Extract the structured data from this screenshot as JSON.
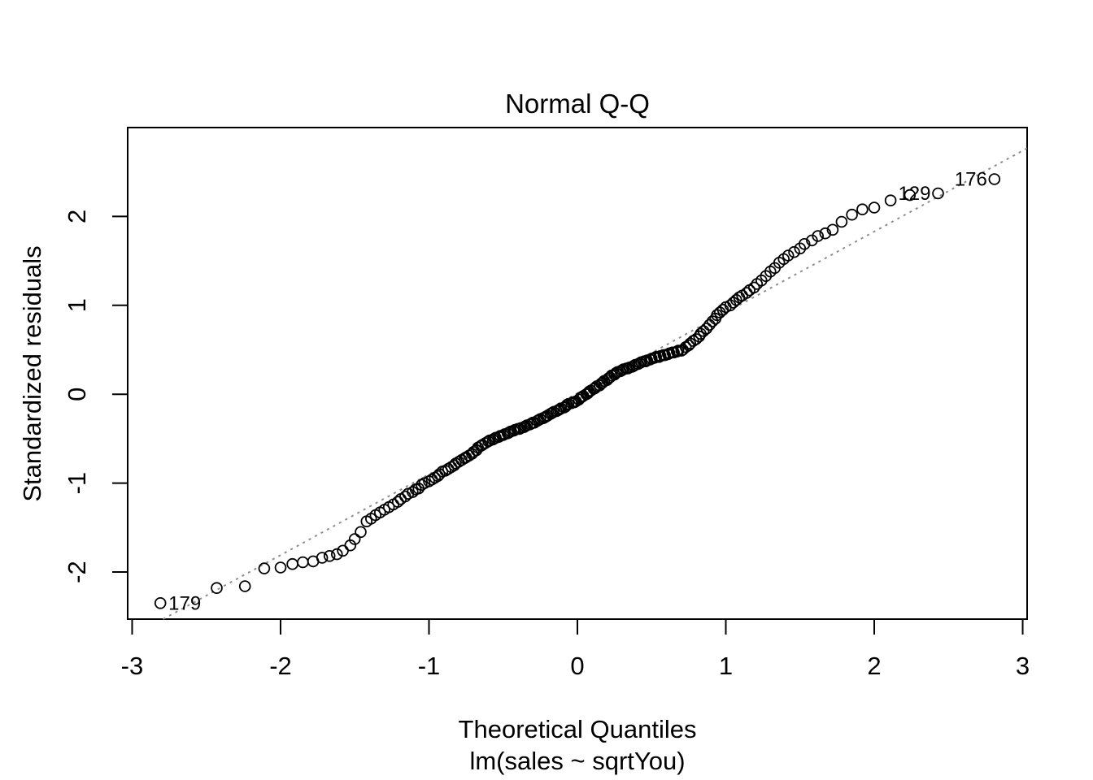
{
  "chart_data": {
    "type": "scatter",
    "subtype": "qq-plot",
    "title": "Normal Q-Q",
    "xlabel": "Theoretical Quantiles",
    "subtitle": "lm(sales ~ sqrtYou)",
    "ylabel": "Standardized residuals",
    "grid": false,
    "xlim": [
      -3.03,
      3.03
    ],
    "ylim": [
      -2.53,
      3.0
    ],
    "x_ticks": [
      -3,
      -2,
      -1,
      0,
      1,
      2,
      3
    ],
    "y_ticks": [
      -2,
      -1,
      0,
      1,
      2
    ],
    "point_color": "#000000",
    "reference_line": {
      "style": "dotted",
      "color": "#8c8c8c",
      "slope": 0.91,
      "intercept": 0.01
    },
    "labeled_points": [
      {
        "label": "179",
        "x": -2.81,
        "y": -2.35,
        "side": "right"
      },
      {
        "label": "129",
        "x": 2.43,
        "y": 2.26,
        "side": "left"
      },
      {
        "label": "176",
        "x": 2.81,
        "y": 2.42,
        "side": "left"
      }
    ],
    "points": [
      [
        -2.81,
        -2.35
      ],
      [
        -2.43,
        -2.18
      ],
      [
        -2.24,
        -2.16
      ],
      [
        -2.11,
        -1.96
      ],
      [
        -2.0,
        -1.95
      ],
      [
        -1.92,
        -1.91
      ],
      [
        -1.85,
        -1.89
      ],
      [
        -1.78,
        -1.88
      ],
      [
        -1.72,
        -1.84
      ],
      [
        -1.67,
        -1.82
      ],
      [
        -1.62,
        -1.8
      ],
      [
        -1.58,
        -1.76
      ],
      [
        -1.53,
        -1.7
      ],
      [
        -1.5,
        -1.63
      ],
      [
        -1.46,
        -1.55
      ],
      [
        -1.42,
        -1.43
      ],
      [
        -1.39,
        -1.4
      ],
      [
        -1.36,
        -1.36
      ],
      [
        -1.33,
        -1.33
      ],
      [
        -1.3,
        -1.3
      ],
      [
        -1.27,
        -1.27
      ],
      [
        -1.24,
        -1.24
      ],
      [
        -1.21,
        -1.21
      ],
      [
        -1.19,
        -1.18
      ],
      [
        -1.16,
        -1.15
      ],
      [
        -1.14,
        -1.12
      ],
      [
        -1.11,
        -1.1
      ],
      [
        -1.09,
        -1.07
      ],
      [
        -1.07,
        -1.06
      ],
      [
        -1.05,
        -1.02
      ],
      [
        -1.03,
        -1.0
      ],
      [
        -1.0,
        -0.98
      ],
      [
        -0.98,
        -0.96
      ],
      [
        -0.96,
        -0.94
      ],
      [
        -0.94,
        -0.92
      ],
      [
        -0.93,
        -0.9
      ],
      [
        -0.91,
        -0.87
      ],
      [
        -0.89,
        -0.86
      ],
      [
        -0.87,
        -0.84
      ],
      [
        -0.85,
        -0.82
      ],
      [
        -0.83,
        -0.8
      ],
      [
        -0.82,
        -0.78
      ],
      [
        -0.8,
        -0.76
      ],
      [
        -0.78,
        -0.74
      ],
      [
        -0.76,
        -0.72
      ],
      [
        -0.75,
        -0.71
      ],
      [
        -0.73,
        -0.69
      ],
      [
        -0.71,
        -0.67
      ],
      [
        -0.7,
        -0.65
      ],
      [
        -0.68,
        -0.63
      ],
      [
        -0.67,
        -0.6
      ],
      [
        -0.65,
        -0.58
      ],
      [
        -0.64,
        -0.57
      ],
      [
        -0.62,
        -0.55
      ],
      [
        -0.6,
        -0.53
      ],
      [
        -0.59,
        -0.52
      ],
      [
        -0.57,
        -0.51
      ],
      [
        -0.56,
        -0.5
      ],
      [
        -0.55,
        -0.49
      ],
      [
        -0.53,
        -0.48
      ],
      [
        -0.52,
        -0.47
      ],
      [
        -0.5,
        -0.46
      ],
      [
        -0.49,
        -0.45
      ],
      [
        -0.47,
        -0.44
      ],
      [
        -0.46,
        -0.43
      ],
      [
        -0.45,
        -0.42
      ],
      [
        -0.43,
        -0.41
      ],
      [
        -0.42,
        -0.4
      ],
      [
        -0.4,
        -0.39
      ],
      [
        -0.39,
        -0.39
      ],
      [
        -0.38,
        -0.38
      ],
      [
        -0.36,
        -0.37
      ],
      [
        -0.35,
        -0.36
      ],
      [
        -0.34,
        -0.35
      ],
      [
        -0.32,
        -0.34
      ],
      [
        -0.31,
        -0.33
      ],
      [
        -0.3,
        -0.32
      ],
      [
        -0.29,
        -0.32
      ],
      [
        -0.27,
        -0.3
      ],
      [
        -0.26,
        -0.29
      ],
      [
        -0.25,
        -0.28
      ],
      [
        -0.23,
        -0.27
      ],
      [
        -0.22,
        -0.26
      ],
      [
        -0.21,
        -0.25
      ],
      [
        -0.2,
        -0.24
      ],
      [
        -0.18,
        -0.22
      ],
      [
        -0.17,
        -0.21
      ],
      [
        -0.16,
        -0.2
      ],
      [
        -0.14,
        -0.19
      ],
      [
        -0.13,
        -0.18
      ],
      [
        -0.12,
        -0.17
      ],
      [
        -0.11,
        -0.16
      ],
      [
        -0.09,
        -0.15
      ],
      [
        -0.08,
        -0.14
      ],
      [
        -0.07,
        -0.12
      ],
      [
        -0.06,
        -0.11
      ],
      [
        -0.04,
        -0.1
      ],
      [
        -0.03,
        -0.09
      ],
      [
        -0.02,
        -0.09
      ],
      [
        -0.01,
        -0.08
      ],
      [
        0.01,
        -0.06
      ],
      [
        0.02,
        -0.04
      ],
      [
        0.03,
        -0.03
      ],
      [
        0.04,
        -0.02
      ],
      [
        0.06,
        0.0
      ],
      [
        0.07,
        0.01
      ],
      [
        0.08,
        0.03
      ],
      [
        0.09,
        0.04
      ],
      [
        0.11,
        0.06
      ],
      [
        0.12,
        0.07
      ],
      [
        0.13,
        0.09
      ],
      [
        0.15,
        0.1
      ],
      [
        0.16,
        0.12
      ],
      [
        0.17,
        0.13
      ],
      [
        0.18,
        0.15
      ],
      [
        0.2,
        0.16
      ],
      [
        0.21,
        0.18
      ],
      [
        0.22,
        0.19
      ],
      [
        0.23,
        0.21
      ],
      [
        0.25,
        0.22
      ],
      [
        0.26,
        0.24
      ],
      [
        0.27,
        0.25
      ],
      [
        0.29,
        0.26
      ],
      [
        0.3,
        0.27
      ],
      [
        0.31,
        0.28
      ],
      [
        0.33,
        0.29
      ],
      [
        0.34,
        0.29
      ],
      [
        0.35,
        0.3
      ],
      [
        0.37,
        0.31
      ],
      [
        0.38,
        0.32
      ],
      [
        0.39,
        0.33
      ],
      [
        0.41,
        0.34
      ],
      [
        0.42,
        0.35
      ],
      [
        0.43,
        0.36
      ],
      [
        0.45,
        0.37
      ],
      [
        0.46,
        0.37
      ],
      [
        0.47,
        0.38
      ],
      [
        0.49,
        0.39
      ],
      [
        0.5,
        0.4
      ],
      [
        0.52,
        0.41
      ],
      [
        0.53,
        0.42
      ],
      [
        0.55,
        0.42
      ],
      [
        0.56,
        0.43
      ],
      [
        0.58,
        0.44
      ],
      [
        0.59,
        0.44
      ],
      [
        0.61,
        0.45
      ],
      [
        0.62,
        0.46
      ],
      [
        0.64,
        0.47
      ],
      [
        0.65,
        0.47
      ],
      [
        0.67,
        0.48
      ],
      [
        0.68,
        0.49
      ],
      [
        0.7,
        0.49
      ],
      [
        0.71,
        0.5
      ],
      [
        0.73,
        0.53
      ],
      [
        0.75,
        0.55
      ],
      [
        0.76,
        0.57
      ],
      [
        0.78,
        0.6
      ],
      [
        0.8,
        0.62
      ],
      [
        0.82,
        0.65
      ],
      [
        0.83,
        0.68
      ],
      [
        0.85,
        0.71
      ],
      [
        0.87,
        0.74
      ],
      [
        0.89,
        0.78
      ],
      [
        0.91,
        0.82
      ],
      [
        0.93,
        0.85
      ],
      [
        0.94,
        0.89
      ],
      [
        0.96,
        0.92
      ],
      [
        0.98,
        0.95
      ],
      [
        1.0,
        0.98
      ],
      [
        1.03,
        1.0
      ],
      [
        1.05,
        1.03
      ],
      [
        1.07,
        1.06
      ],
      [
        1.09,
        1.09
      ],
      [
        1.11,
        1.11
      ],
      [
        1.14,
        1.14
      ],
      [
        1.16,
        1.17
      ],
      [
        1.19,
        1.2
      ],
      [
        1.21,
        1.24
      ],
      [
        1.24,
        1.28
      ],
      [
        1.27,
        1.33
      ],
      [
        1.3,
        1.38
      ],
      [
        1.33,
        1.42
      ],
      [
        1.36,
        1.48
      ],
      [
        1.39,
        1.52
      ],
      [
        1.42,
        1.56
      ],
      [
        1.46,
        1.6
      ],
      [
        1.5,
        1.64
      ],
      [
        1.53,
        1.69
      ],
      [
        1.58,
        1.73
      ],
      [
        1.62,
        1.78
      ],
      [
        1.67,
        1.81
      ],
      [
        1.72,
        1.85
      ],
      [
        1.78,
        1.94
      ],
      [
        1.85,
        2.02
      ],
      [
        1.92,
        2.08
      ],
      [
        2.0,
        2.1
      ],
      [
        2.11,
        2.18
      ],
      [
        2.24,
        2.24
      ],
      [
        2.43,
        2.26
      ],
      [
        2.81,
        2.42
      ]
    ]
  }
}
